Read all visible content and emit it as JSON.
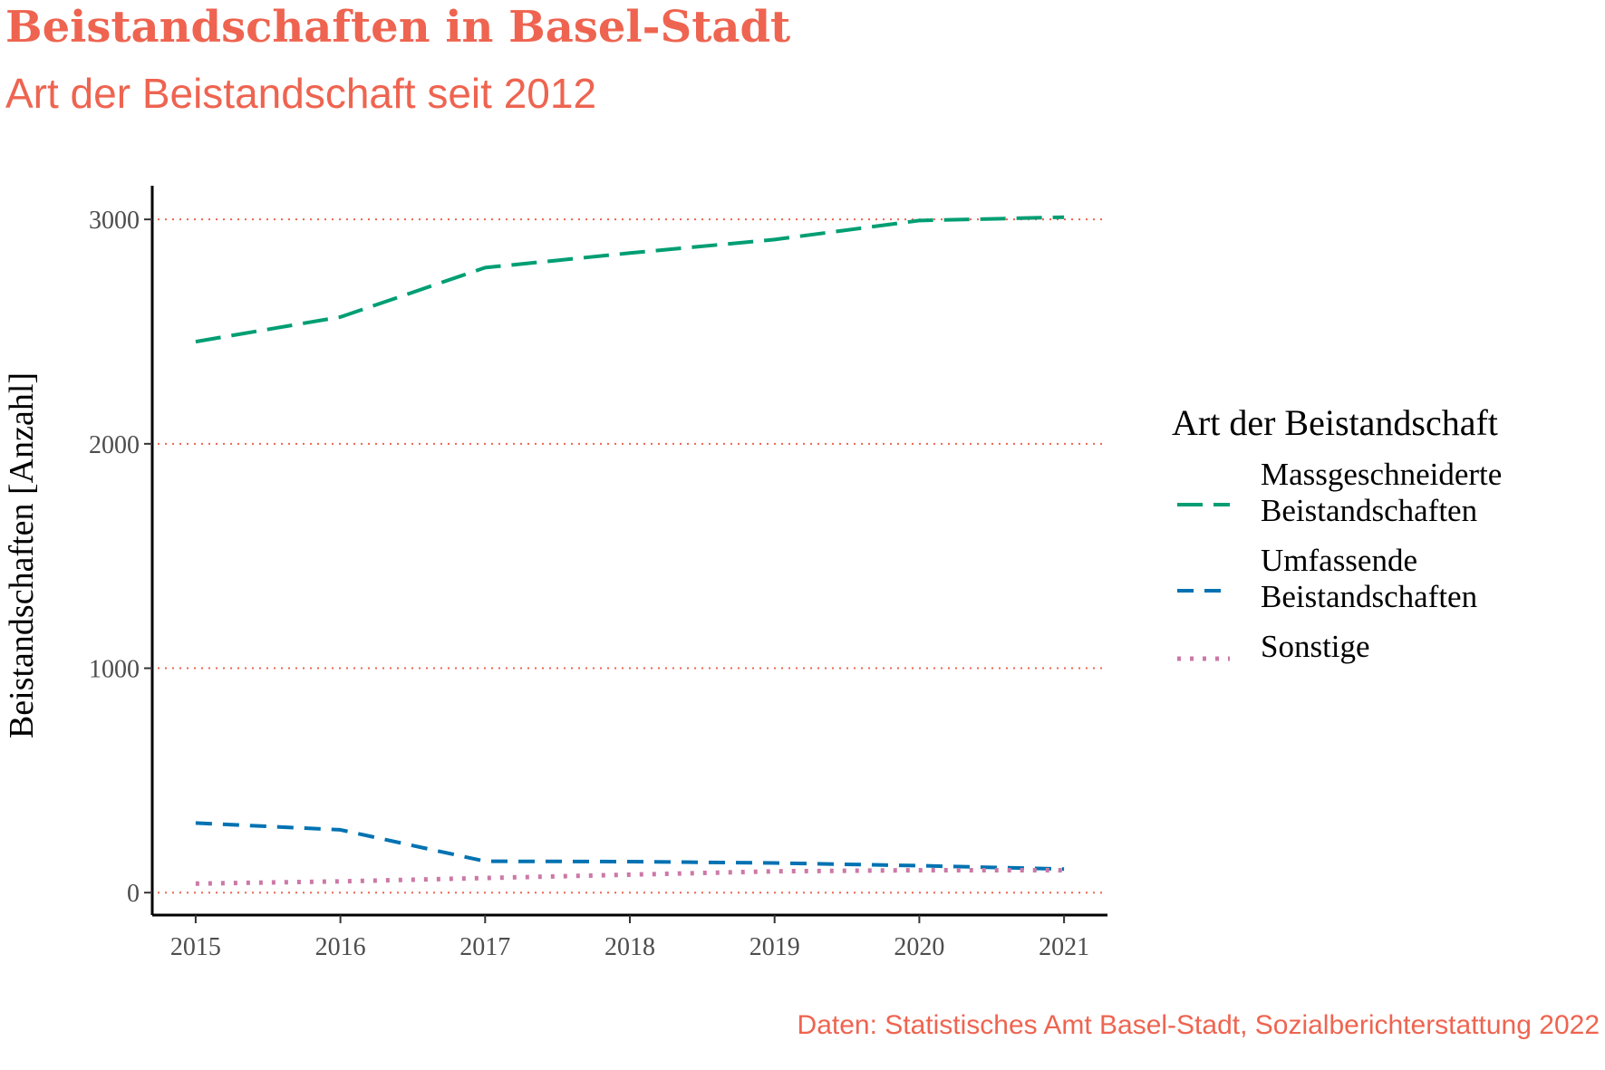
{
  "title": "Beistandschaften in Basel-Stadt",
  "subtitle": "Art der Beistandschaft seit 2012",
  "caption": "Daten: Statistisches Amt Basel-Stadt, Sozialberichterstattung 2022",
  "colors": {
    "title": "#ee6450",
    "grid": "#ee6450",
    "massgeschneiderte": "#009e73",
    "umfassende": "#0072b2",
    "sonstige": "#cc79a7"
  },
  "chart_data": {
    "type": "line",
    "ylabel": "Beistandschaften [Anzahl]",
    "xlabel": "",
    "x": [
      2015,
      2016,
      2017,
      2018,
      2019,
      2020,
      2021
    ],
    "ylim": [
      -100,
      3150
    ],
    "yticks": [
      0,
      1000,
      2000,
      3000
    ],
    "grid": "horizontal dotted",
    "legend": {
      "title": "Art der Beistandschaft",
      "placement": "right"
    },
    "series": [
      {
        "name": "Massgeschneiderte Beistandschaften",
        "name_lines": [
          "Massgeschneiderte",
          "Beistandschaften"
        ],
        "style": "longdash",
        "color": "#009e73",
        "values": [
          2455,
          2565,
          2785,
          2850,
          2910,
          2995,
          3010
        ]
      },
      {
        "name": "Umfassende Beistandschaften",
        "name_lines": [
          "Umfassende",
          "Beistandschaften"
        ],
        "style": "dashed",
        "color": "#0072b2",
        "values": [
          310,
          280,
          140,
          138,
          132,
          120,
          105
        ]
      },
      {
        "name": "Sonstige",
        "name_lines": [
          "Sonstige"
        ],
        "style": "dotted",
        "color": "#cc79a7",
        "values": [
          40,
          50,
          65,
          80,
          95,
          100,
          100
        ]
      }
    ]
  }
}
